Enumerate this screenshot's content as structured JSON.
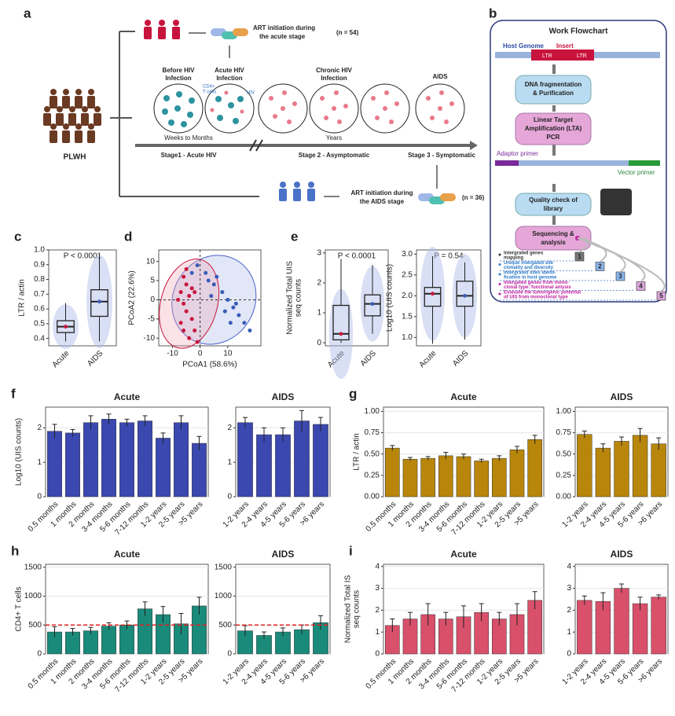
{
  "figure_labels": [
    "a",
    "b"
  ],
  "diagram_a": {
    "group": "PLWH",
    "acute_art": [
      "ART initiation during",
      "the acute stage"
    ],
    "acute_n": "(n = 54)",
    "aids_art": [
      "ART initiation during",
      "the AIDS stage"
    ],
    "aids_n": "(n = 36)",
    "stages": [
      [
        "Before HIV",
        "Infection"
      ],
      [
        "Acute HIV",
        "Infection"
      ],
      [
        "Chronic HIV",
        "Infection"
      ],
      [
        "AIDS"
      ]
    ],
    "cd4": [
      "CD4+",
      "T cells"
    ],
    "hiv": "HIV",
    "weeks": "Weeks to Months",
    "years": "Years",
    "stage1": "Stage1 - Acute HIV",
    "stage2": "Stage 2 - Asymptomatic",
    "stage3": "Stage 3 - Symptomatic"
  },
  "flowchart_b": {
    "title": "Work Flowchart",
    "host": "Host Genome",
    "insert": "Insert",
    "ltr": "LTR",
    "steps": [
      [
        "DNA fragmentation",
        "& Purification"
      ],
      [
        "Linear Target",
        "Amplification (LTA)",
        "PCR"
      ],
      [
        "Quality check of",
        "library"
      ],
      [
        "Sequencing &",
        "analysis"
      ]
    ],
    "adaptor": "Adaptor primer",
    "vector": "Vector primer",
    "items": [
      {
        "text": [
          "Intergrated genes",
          "mapping"
        ],
        "num": "1"
      },
      {
        "text": [
          "Unique intergated site",
          "clonality and diversity"
        ],
        "num": "2"
      },
      {
        "text": [
          "Intergrated sites identi-",
          "fication in host genome"
        ],
        "num": "3"
      },
      {
        "text": [
          "Intergated genes from mono-",
          "clonal type: functional anlysis"
        ],
        "num": "4"
      },
      {
        "text": [
          "Evaluate the tumorigenic potential",
          "of UIS from monoclonal type"
        ],
        "num": "5"
      }
    ]
  },
  "chart_data": [
    {
      "type": "box",
      "panel_label": "c",
      "ylabel": [
        "LTR / actin"
      ],
      "annotation": "P < 0.0001",
      "categories": [
        "Acute",
        "AIDS"
      ],
      "colors": [
        "#c8143c",
        "#3a5bb8"
      ],
      "boxes": [
        {
          "min": 0.38,
          "q1": 0.44,
          "median": 0.48,
          "q3": 0.52,
          "max": 0.64
        },
        {
          "min": 0.38,
          "q1": 0.55,
          "median": 0.65,
          "q3": 0.73,
          "max": 0.97
        }
      ],
      "ylim": [
        0.35,
        1.0
      ],
      "yticks": [
        0.4,
        0.5,
        0.6,
        0.7,
        0.8,
        0.9,
        {
          "value": 1.0,
          "label": "1.0"
        }
      ]
    },
    {
      "type": "scatter",
      "panel_label": "d",
      "xlabel": "PCoA1 (58.6%)",
      "ylabel": [
        "PCoA2 (22.6%)"
      ],
      "xlim": [
        -15,
        22
      ],
      "ylim": [
        -12,
        13
      ],
      "xticks": [
        -10,
        0,
        10
      ],
      "yticks": [
        -10,
        -5,
        0,
        5,
        10
      ],
      "series": [
        {
          "color": "#c8143c",
          "x": [
            -6,
            -5,
            -7,
            -4,
            -6,
            -5,
            -3,
            -7,
            -2,
            -4,
            -1,
            -8,
            -3,
            -5,
            -6,
            -2
          ],
          "y": [
            6,
            4,
            2,
            1,
            -1,
            -3,
            -5,
            -6,
            -8,
            -10,
            -11,
            0,
            3,
            8,
            -8,
            2
          ]
        },
        {
          "color": "#3a5bb8",
          "x": [
            -1,
            2,
            5,
            8,
            10,
            12,
            14,
            16,
            18,
            6,
            3,
            9,
            13,
            4,
            11,
            -3
          ],
          "y": [
            9,
            7,
            4,
            2,
            0,
            -2,
            -4,
            -6,
            -8,
            6,
            5,
            -3,
            -1,
            1,
            -6,
            7
          ]
        }
      ]
    },
    {
      "type": "box",
      "panel_label": "e",
      "ylabel": [
        "Normalized Total UIS",
        "seq counts"
      ],
      "annotation": "P < 0.0001",
      "categories": [
        "Acute",
        "AIDS"
      ],
      "colors": [
        "#c8143c",
        "#3a5bb8"
      ],
      "boxes": [
        {
          "min": 0,
          "q1": 0.1,
          "median": 0.3,
          "q3": 1.25,
          "max": 2.8
        },
        {
          "min": 0.3,
          "q1": 0.9,
          "median": 1.3,
          "q3": 1.6,
          "max": 2.6
        }
      ],
      "ylim": [
        -0.1,
        3.1
      ],
      "yticks": [
        0,
        1,
        2,
        3
      ]
    },
    {
      "type": "box",
      "ylabel": [
        "Log10 (UIS counts)"
      ],
      "annotation": "P = 0.54",
      "categories": [
        "Acute",
        "AIDS"
      ],
      "colors": [
        "#c8143c",
        "#3a5bb8"
      ],
      "boxes": [
        {
          "min": 0.85,
          "q1": 1.75,
          "median": 2.05,
          "q3": 2.2,
          "max": 2.95
        },
        {
          "min": 0.95,
          "q1": 1.75,
          "median": 2.0,
          "q3": 2.35,
          "max": 2.8
        }
      ],
      "ylim": [
        0.8,
        3.1
      ],
      "yticks": [
        {
          "value": 1.0,
          "label": "1.0"
        },
        1.5,
        {
          "value": 2.0,
          "label": "2.0"
        },
        2.5,
        {
          "value": 3.0,
          "label": "3.0"
        }
      ]
    },
    {
      "type": "bar",
      "panel_label": "f",
      "title": "Acute",
      "ylabel": [
        "Log10 (UIS counts)"
      ],
      "color": "#3b48b0",
      "categories": [
        "0.5 months",
        "1 months",
        "2 months",
        "3-4 months",
        "5-6 months",
        "7-12 months",
        "1-2 years",
        "2-5 years",
        ">5 years"
      ],
      "values": [
        1.9,
        1.85,
        2.15,
        2.25,
        2.15,
        2.2,
        1.7,
        2.15,
        1.55
      ],
      "errors": [
        0.2,
        0.1,
        0.2,
        0.15,
        0.1,
        0.15,
        0.15,
        0.2,
        0.2
      ],
      "ylim": [
        0,
        2.6
      ],
      "yticks": [
        0,
        1,
        2
      ]
    },
    {
      "type": "bar",
      "title": "AIDS",
      "color": "#3b48b0",
      "categories": [
        "1-2 years",
        "2-4 years",
        "4-5 years",
        "5-6 years",
        ">6 years"
      ],
      "values": [
        2.15,
        1.8,
        1.8,
        2.2,
        2.1
      ],
      "errors": [
        0.15,
        0.2,
        0.2,
        0.3,
        0.2
      ],
      "ylim": [
        0,
        2.6
      ],
      "yticks": [
        0,
        1,
        2
      ]
    },
    {
      "type": "bar",
      "panel_label": "g",
      "title": "Acute",
      "ylabel": [
        "LTR / actin"
      ],
      "color": "#b8860b",
      "categories": [
        "0.5 months",
        "1 months",
        "2 months",
        "3-4 months",
        "5-6 months",
        "7-12 months",
        "1-2 years",
        "2-5 years",
        ">5 years"
      ],
      "values": [
        0.57,
        0.44,
        0.45,
        0.48,
        0.47,
        0.42,
        0.45,
        0.55,
        0.67
      ],
      "errors": [
        0.03,
        0.02,
        0.02,
        0.04,
        0.03,
        0.02,
        0.03,
        0.04,
        0.05
      ],
      "ylim": [
        0,
        1.05
      ],
      "yticks": [
        {
          "value": 0,
          "label": "0.00"
        },
        0.25,
        {
          "value": 0.5,
          "label": "0.50"
        },
        0.75,
        {
          "value": 1,
          "label": "1.00"
        }
      ]
    },
    {
      "type": "bar",
      "title": "AIDS",
      "color": "#b8860b",
      "categories": [
        "1-2 years",
        "2-4 years",
        "4-5 years",
        "5-6 years",
        ">6 years"
      ],
      "values": [
        0.73,
        0.57,
        0.65,
        0.72,
        0.62
      ],
      "errors": [
        0.04,
        0.05,
        0.05,
        0.08,
        0.07
      ],
      "ylim": [
        0,
        1.05
      ],
      "yticks": [
        {
          "value": 0,
          "label": "0.00"
        },
        0.25,
        {
          "value": 0.5,
          "label": "0.50"
        },
        0.75,
        {
          "value": 1,
          "label": "1.00"
        }
      ]
    },
    {
      "type": "bar",
      "panel_label": "h",
      "title": "Acute",
      "ylabel": [
        "CD4+ T cells"
      ],
      "color": "#1a8a7a",
      "ref_line": 500,
      "ref_color": "#e02020",
      "categories": [
        "0.5 months",
        "1 months",
        "2 months",
        "3-4 months",
        "5-6 months",
        "7-12 months",
        "1-2 years",
        "2-5 years",
        ">5 years"
      ],
      "values": [
        380,
        380,
        400,
        480,
        500,
        780,
        680,
        520,
        830
      ],
      "errors": [
        90,
        60,
        60,
        60,
        70,
        120,
        140,
        180,
        150
      ],
      "ylim": [
        0,
        1550
      ],
      "yticks": [
        0,
        500,
        1000,
        1500
      ]
    },
    {
      "type": "bar",
      "title": "AIDS",
      "color": "#1a8a7a",
      "ref_line": 500,
      "ref_color": "#e02020",
      "categories": [
        "1-2 years",
        "2-4 years",
        "4-5 years",
        "5-6 years",
        ">6 years"
      ],
      "values": [
        400,
        320,
        380,
        420,
        540
      ],
      "errors": [
        90,
        60,
        70,
        80,
        120
      ],
      "ylim": [
        0,
        1550
      ],
      "yticks": [
        0,
        500,
        1000,
        1500
      ]
    },
    {
      "type": "bar",
      "panel_label": "i",
      "title": "Acute",
      "ylabel": [
        "Normalized Total IS",
        "seq counts"
      ],
      "color": "#d9506a",
      "categories": [
        "0.5 months",
        "1 months",
        "2 months",
        "3-4 months",
        "5-6 months",
        "7-12 months",
        "1-2 years",
        "2-5 years",
        ">5 years"
      ],
      "values": [
        1.3,
        1.6,
        1.8,
        1.6,
        1.7,
        1.9,
        1.6,
        1.8,
        2.45
      ],
      "errors": [
        0.3,
        0.3,
        0.5,
        0.3,
        0.5,
        0.4,
        0.3,
        0.5,
        0.4
      ],
      "ylim": [
        0,
        4.1
      ],
      "yticks": [
        0,
        1,
        2,
        3,
        4
      ]
    },
    {
      "type": "bar",
      "title": "AIDS",
      "color": "#d9506a",
      "categories": [
        "1-2 years",
        "2-4 years",
        "4-5 years",
        "5-6 years",
        ">6 years"
      ],
      "values": [
        2.45,
        2.4,
        3.0,
        2.3,
        2.6
      ],
      "errors": [
        0.2,
        0.4,
        0.2,
        0.3,
        0.1
      ],
      "ylim": [
        0,
        4.1
      ],
      "yticks": [
        0,
        1,
        2,
        3,
        4
      ]
    }
  ]
}
